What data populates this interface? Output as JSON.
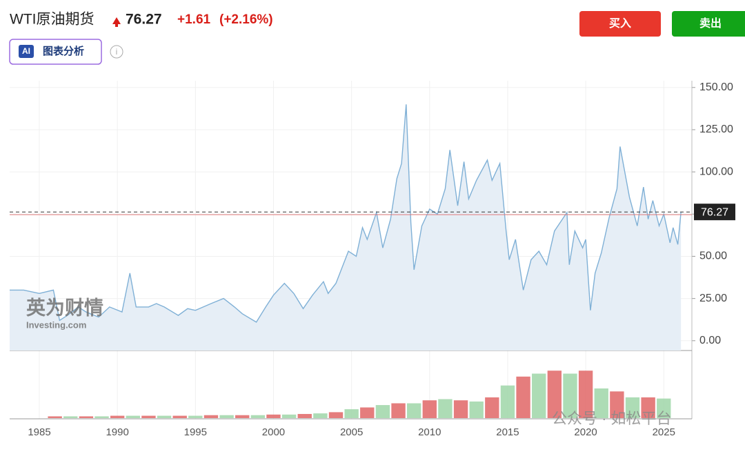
{
  "header": {
    "title": "WTI原油期货",
    "price": "76.27",
    "change": "+1.61",
    "change_pct": "(+2.16%)",
    "buy": "买入",
    "sell": "卖出",
    "ai_badge": "AI",
    "ai_label": "图表分析"
  },
  "watermark": {
    "brand": "英为财情",
    "site": "Investing.com",
    "footer": "公众号 · 如松平台"
  },
  "chart_data": {
    "type": "line",
    "color": "#7fb0d6",
    "fill": "#e6eef6",
    "x": [
      1983.1,
      1984,
      1985,
      1985.9,
      1986.3,
      1986.8,
      1987.5,
      1988,
      1988.8,
      1989.5,
      1990.3,
      1990.8,
      1991.2,
      1992,
      1992.5,
      1993,
      1993.9,
      1994.5,
      1995,
      1996,
      1996.8,
      1997.5,
      1998,
      1998.9,
      1999.5,
      2000,
      2000.7,
      2001.3,
      2001.9,
      2002.5,
      2003.2,
      2003.5,
      2004,
      2004.8,
      2005.3,
      2005.7,
      2006,
      2006.6,
      2007,
      2007.5,
      2007.9,
      2008.2,
      2008.5,
      2008.8,
      2009,
      2009.5,
      2010,
      2010.5,
      2011,
      2011.3,
      2011.8,
      2012.2,
      2012.5,
      2013,
      2013.7,
      2014,
      2014.5,
      2014.9,
      2015.1,
      2015.5,
      2016,
      2016.5,
      2017,
      2017.5,
      2018,
      2018.8,
      2018.95,
      2019.3,
      2019.8,
      2020,
      2020.3,
      2020.6,
      2021,
      2021.5,
      2022,
      2022.2,
      2022.5,
      2022.8,
      2023.3,
      2023.7,
      2024,
      2024.3,
      2024.7,
      2025,
      2025.4,
      2025.6,
      2025.9,
      2026.1
    ],
    "values": [
      30,
      30,
      28,
      30,
      12,
      15,
      20,
      17,
      14,
      20,
      17,
      40,
      20,
      20,
      22,
      20,
      15,
      19,
      18,
      22,
      25,
      20,
      16,
      11,
      20,
      27,
      34,
      28,
      19,
      27,
      35,
      28,
      34,
      53,
      50,
      67,
      60,
      76,
      55,
      72,
      96,
      105,
      140,
      70,
      42,
      68,
      78,
      75,
      90,
      113,
      80,
      106,
      84,
      95,
      107,
      95,
      105,
      65,
      48,
      60,
      30,
      48,
      53,
      45,
      65,
      76,
      45,
      65,
      55,
      60,
      18,
      40,
      52,
      73,
      90,
      115,
      100,
      85,
      68,
      91,
      72,
      83,
      68,
      75,
      58,
      67,
      57,
      76.27
    ],
    "xlim": [
      1983.1,
      2026.8
    ],
    "ylim": [
      -5.8,
      154
    ],
    "xticks": [
      1985,
      1990,
      1995,
      2000,
      2005,
      2010,
      2015,
      2020,
      2025
    ],
    "yticks": [
      {
        "value": 0,
        "label": "0.00"
      },
      {
        "value": 25,
        "label": "25.00"
      },
      {
        "value": 50,
        "label": "50.00"
      },
      {
        "value": 75,
        "label": "75.00"
      },
      {
        "value": 100,
        "label": "100.00"
      },
      {
        "value": 125,
        "label": "125.00"
      },
      {
        "value": 150,
        "label": "150.00"
      }
    ],
    "last": {
      "value": 76.27,
      "label": "76.27"
    },
    "prev_close": 74.66,
    "grid": true,
    "volume": {
      "x": [
        1986,
        1987,
        1988,
        1989,
        1990,
        1991,
        1992,
        1993,
        1994,
        1995,
        1996,
        1997,
        1998,
        1999,
        2000,
        2001,
        2002,
        2003,
        2004,
        2005,
        2006,
        2007,
        2008,
        2009,
        2010,
        2011,
        2012,
        2013,
        2014,
        2015,
        2016,
        2017,
        2018,
        2019,
        2020,
        2021,
        2022,
        2023,
        2024,
        2025
      ],
      "values": [
        3,
        3,
        3,
        3,
        4,
        4,
        4,
        4,
        4,
        4,
        5,
        5,
        5,
        5,
        6,
        6,
        7,
        8,
        10,
        15,
        18,
        22,
        25,
        25,
        30,
        32,
        30,
        28,
        35,
        55,
        70,
        75,
        80,
        75,
        80,
        50,
        45,
        35,
        35,
        33
      ],
      "ylim": [
        0,
        100
      ],
      "colors": [
        "#e06666",
        "#9fd6a8"
      ]
    }
  }
}
